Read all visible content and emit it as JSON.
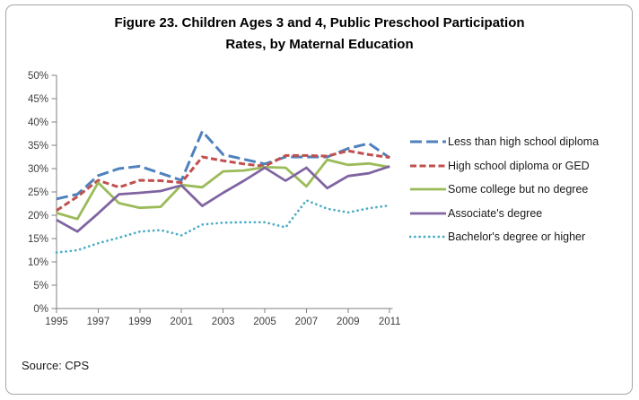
{
  "figure": {
    "title_lines": [
      "Figure 23. Children Ages 3 and 4, Public Preschool Participation",
      "Rates, by Maternal Education"
    ],
    "source": "Source: CPS"
  },
  "chart_data": {
    "type": "line",
    "x": [
      1995,
      1996,
      1997,
      1998,
      1999,
      2000,
      2001,
      2002,
      2003,
      2004,
      2005,
      2006,
      2007,
      2008,
      2009,
      2010,
      2011
    ],
    "x_tick_labels": [
      "1995",
      "1997",
      "1999",
      "2001",
      "2003",
      "2005",
      "2007",
      "2009",
      "2011"
    ],
    "y_tick_labels": [
      "0%",
      "5%",
      "10%",
      "15%",
      "20%",
      "25%",
      "30%",
      "35%",
      "40%",
      "45%",
      "50%"
    ],
    "ylim": [
      0,
      50
    ],
    "grid": false,
    "legend_position": "right",
    "axis_color": "#808080",
    "tick_label_color": "#404040",
    "series": [
      {
        "name": "Less than high school diploma",
        "color": "#4F81BD",
        "style": "long-dash",
        "values": [
          23.5,
          24.5,
          28.5,
          30,
          30.5,
          29,
          27.5,
          38,
          33,
          32,
          31,
          32.5,
          32.5,
          32.5,
          34.3,
          35.4,
          32.3
        ]
      },
      {
        "name": "High school diploma or GED",
        "color": "#C0504D",
        "style": "dash",
        "values": [
          21,
          24,
          27.5,
          26,
          27.5,
          27.4,
          27,
          32.5,
          31.7,
          31,
          30.5,
          32.8,
          32.8,
          32.7,
          33.8,
          33,
          32.4
        ]
      },
      {
        "name": "Some college but no degree",
        "color": "#9BBB59",
        "style": "solid",
        "values": [
          20.5,
          19.2,
          27,
          22.6,
          21.6,
          21.8,
          26.5,
          26,
          29.4,
          29.6,
          30.3,
          30.2,
          26.2,
          31.9,
          30.8,
          31.1,
          30.3
        ]
      },
      {
        "name": "Associate's degree",
        "color": "#8064A2",
        "style": "solid",
        "values": [
          19,
          16.5,
          20.4,
          24.5,
          24.8,
          25.2,
          26.4,
          22,
          24.8,
          27.4,
          30.2,
          27.4,
          30.2,
          25.8,
          28.4,
          29,
          30.5
        ]
      },
      {
        "name": "Bachelor's degree or higher",
        "color": "#4BACC6",
        "style": "dot",
        "values": [
          12,
          12.5,
          14,
          15.2,
          16.5,
          16.8,
          15.7,
          18,
          18.4,
          18.5,
          18.5,
          17.4,
          23.2,
          21.4,
          20.6,
          21.5,
          22.1
        ]
      }
    ]
  }
}
